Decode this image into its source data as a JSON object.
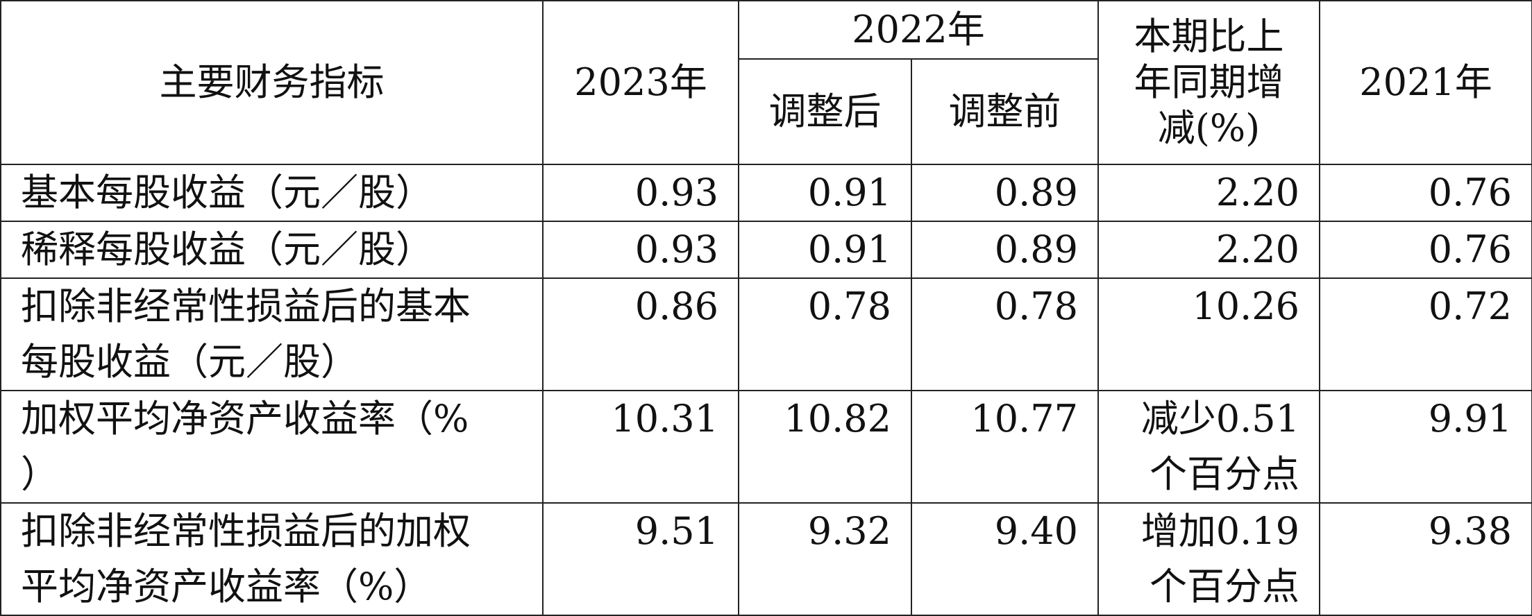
{
  "table": {
    "header": {
      "indicator": "主要财务指标",
      "y2023": "2023年",
      "y2022": "2022年",
      "adjusted_after": "调整后",
      "adjusted_before": "调整前",
      "change": [
        "本期比上",
        "年同期增",
        "减(%)"
      ],
      "y2021": "2021年"
    },
    "rows": [
      [
        [
          "基本每股收益（元／股）"
        ],
        "0.93",
        "0.91",
        "0.89",
        [
          "2.20"
        ],
        "0.76"
      ],
      [
        [
          "稀释每股收益（元／股）"
        ],
        "0.93",
        "0.91",
        "0.89",
        [
          "2.20"
        ],
        "0.76"
      ],
      [
        [
          "扣除非经常性损益后的基本",
          "每股收益（元／股）"
        ],
        "0.86",
        "0.78",
        "0.78",
        [
          "10.26"
        ],
        "0.72"
      ],
      [
        [
          "加权平均净资产收益率（%",
          "）"
        ],
        "10.31",
        "10.82",
        "10.77",
        [
          "减少0.51",
          "个百分点"
        ],
        "9.91"
      ],
      [
        [
          "扣除非经常性损益后的加权",
          "平均净资产收益率（%）"
        ],
        "9.51",
        "9.32",
        "9.40",
        [
          "增加0.19",
          "个百分点"
        ],
        "9.38"
      ]
    ]
  }
}
